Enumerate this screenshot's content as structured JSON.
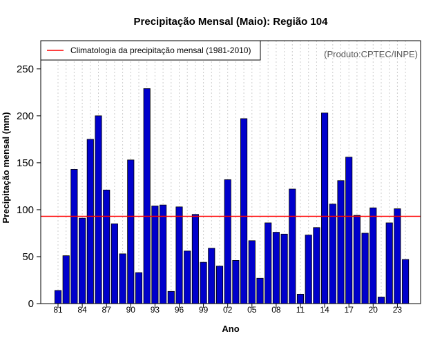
{
  "chart_data": {
    "type": "bar",
    "title": "Precipitação Mensal (Maio): Região 104",
    "xlabel": "Ano",
    "ylabel": "Precipitação mensal (mm)",
    "source": "(Produto:CPTEC/INPE)",
    "legend": {
      "label": "Climatologia da precipitação mensal (1981-2010)",
      "position": "top-left"
    },
    "ylim": [
      0,
      280
    ],
    "yticks": [
      0,
      50,
      100,
      150,
      200,
      250
    ],
    "xtick_labels": [
      "81",
      "84",
      "87",
      "90",
      "93",
      "96",
      "99",
      "02",
      "05",
      "08",
      "11",
      "14",
      "17",
      "20",
      "23"
    ],
    "xtick_indices": [
      0,
      3,
      6,
      9,
      12,
      15,
      18,
      21,
      24,
      27,
      30,
      33,
      36,
      39,
      42
    ],
    "climatology": 93,
    "categories": [
      "1981",
      "1982",
      "1983",
      "1984",
      "1985",
      "1986",
      "1987",
      "1988",
      "1989",
      "1990",
      "1991",
      "1992",
      "1993",
      "1994",
      "1995",
      "1996",
      "1997",
      "1998",
      "1999",
      "2000",
      "2001",
      "2002",
      "2003",
      "2004",
      "2005",
      "2006",
      "2007",
      "2008",
      "2009",
      "2010",
      "2011",
      "2012",
      "2013",
      "2014",
      "2015",
      "2016",
      "2017",
      "2018",
      "2019",
      "2020",
      "2021",
      "2022",
      "2023",
      "2024"
    ],
    "values": [
      14,
      51,
      143,
      91,
      175,
      200,
      121,
      85,
      53,
      153,
      33,
      229,
      104,
      105,
      13,
      103,
      56,
      95,
      44,
      59,
      40,
      132,
      46,
      197,
      67,
      27,
      86,
      76,
      74,
      122,
      10,
      73,
      81,
      203,
      106,
      131,
      156,
      94,
      75,
      102,
      7,
      86,
      101,
      47
    ],
    "colors": {
      "bar": "#0000cc",
      "bar_edge": "#000000",
      "climatology": "#ff0000",
      "grid": "#cccccc"
    }
  }
}
